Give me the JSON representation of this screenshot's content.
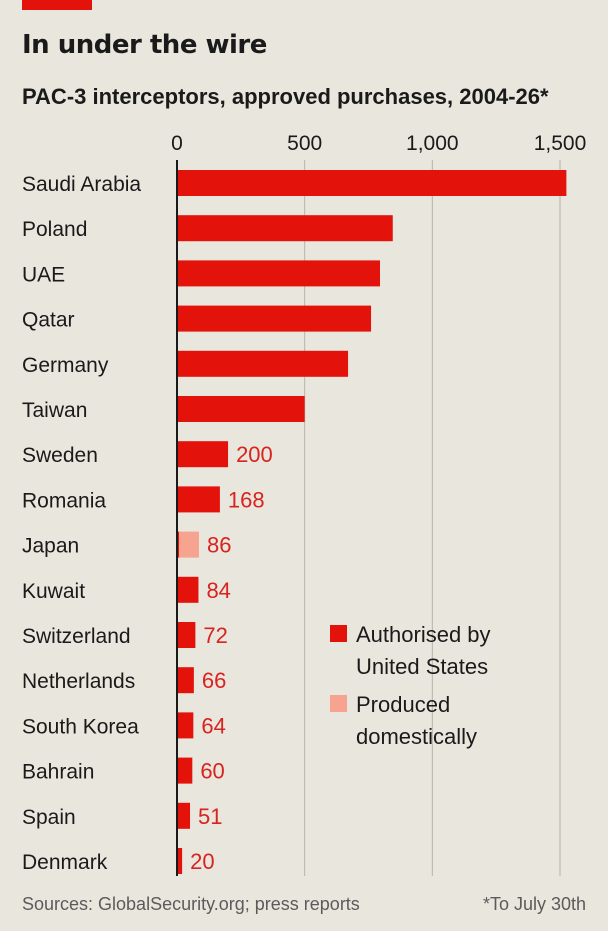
{
  "header": {
    "title": "In under the wire",
    "subtitle": "PAC-3 interceptors, approved purchases, 2004-26*"
  },
  "footer": {
    "source": "Sources: GlobalSecurity.org; press reports",
    "note": "*To July 30th"
  },
  "colors": {
    "authorised": "#e3120b",
    "domestic": "#f6a48f",
    "label_red": "#d9231e",
    "background": "#e9e6dd",
    "grid": "#b7b3aa"
  },
  "chart_data": {
    "type": "bar",
    "orientation": "horizontal",
    "xlim": [
      0,
      1500
    ],
    "xticks": [
      0,
      500,
      1000,
      1500
    ],
    "xtick_labels": [
      "0",
      "500",
      "1,000",
      "1,500"
    ],
    "grid": true,
    "legend_position": "right",
    "legend": [
      {
        "key": "authorised",
        "label_lines": [
          "Authorised by",
          "United States"
        ]
      },
      {
        "key": "domestic",
        "label_lines": [
          "Produced",
          "domestically"
        ]
      }
    ],
    "categories": [
      "Saudi Arabia",
      "Poland",
      "UAE",
      "Qatar",
      "Germany",
      "Taiwan",
      "Sweden",
      "Romania",
      "Japan",
      "Kuwait",
      "Switzerland",
      "Netherlands",
      "South Korea",
      "Bahrain",
      "Spain",
      "Denmark"
    ],
    "series": [
      {
        "name": "Authorised by United States",
        "key": "authorised",
        "values": [
          1525,
          845,
          795,
          760,
          670,
          500,
          200,
          168,
          8,
          84,
          72,
          66,
          64,
          60,
          51,
          20
        ]
      },
      {
        "name": "Produced domestically",
        "key": "domestic",
        "values": [
          0,
          0,
          0,
          0,
          0,
          0,
          0,
          0,
          78,
          0,
          0,
          0,
          0,
          0,
          0,
          0
        ]
      }
    ],
    "data_labels": [
      "",
      "",
      "",
      "",
      "",
      "",
      "200",
      "168",
      "86",
      "84",
      "72",
      "66",
      "64",
      "60",
      "51",
      "20"
    ]
  }
}
